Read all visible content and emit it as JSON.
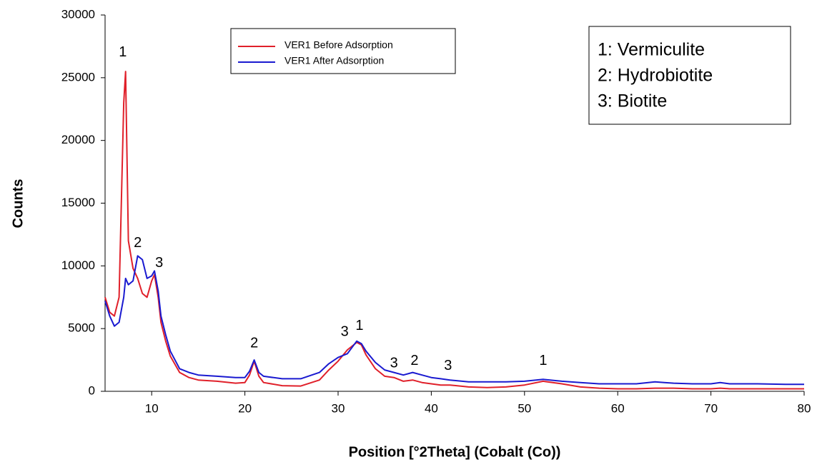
{
  "chart_data": {
    "type": "line",
    "x_label": "Position [°2Theta] (Cobalt (Co))",
    "y_label": "Counts",
    "x": [
      5,
      5.5,
      6,
      6.5,
      7,
      7.2,
      7.5,
      8,
      8.5,
      9,
      9.5,
      10,
      10.3,
      10.7,
      11,
      11.5,
      12,
      13,
      14,
      15,
      17,
      19,
      20,
      20.5,
      21,
      21.5,
      22,
      24,
      26,
      28,
      29,
      30,
      31,
      32,
      32.5,
      33,
      34,
      35,
      36,
      37,
      38,
      39,
      40,
      41,
      42,
      44,
      46,
      48,
      50,
      52,
      54,
      56,
      58,
      60,
      62,
      64,
      65,
      66,
      68,
      70,
      71,
      72,
      75,
      78,
      80
    ],
    "series": [
      {
        "name": "VER1 Before Adsorption",
        "color": "#e0202a",
        "values": [
          7500,
          6300,
          6000,
          7500,
          23000,
          25500,
          12000,
          9800,
          9000,
          7800,
          7500,
          8800,
          9300,
          7500,
          5500,
          4000,
          2800,
          1500,
          1100,
          900,
          800,
          650,
          700,
          1300,
          2400,
          1200,
          700,
          450,
          420,
          900,
          1700,
          2400,
          3300,
          3900,
          3700,
          2900,
          1800,
          1200,
          1100,
          800,
          900,
          700,
          600,
          500,
          500,
          350,
          300,
          350,
          500,
          800,
          600,
          350,
          250,
          200,
          200,
          250,
          250,
          250,
          200,
          200,
          250,
          200,
          200,
          200,
          200
        ]
      },
      {
        "name": "VER1 After Adsorption",
        "color": "#1a1ad0",
        "values": [
          7200,
          6000,
          5200,
          5500,
          7500,
          9000,
          8500,
          8800,
          10800,
          10500,
          9000,
          9200,
          9600,
          8000,
          6000,
          4500,
          3200,
          1800,
          1500,
          1300,
          1200,
          1100,
          1100,
          1600,
          2500,
          1500,
          1200,
          1000,
          1000,
          1500,
          2200,
          2700,
          3000,
          4000,
          3800,
          3200,
          2300,
          1700,
          1500,
          1300,
          1500,
          1300,
          1100,
          1000,
          900,
          750,
          750,
          750,
          800,
          950,
          800,
          700,
          600,
          600,
          600,
          750,
          700,
          650,
          600,
          600,
          700,
          600,
          600,
          550,
          550
        ]
      }
    ],
    "xlim": [
      5,
      80
    ],
    "xticks": [
      10,
      20,
      30,
      40,
      50,
      60,
      70,
      80
    ],
    "ylim": [
      0,
      30000
    ],
    "yticks": [
      0,
      5000,
      10000,
      15000,
      20000,
      25000,
      30000
    ],
    "annotations": [
      {
        "text": "1",
        "x": 6.9,
        "y": 27000
      },
      {
        "text": "2",
        "x": 8.5,
        "y": 11800
      },
      {
        "text": "3",
        "x": 10.8,
        "y": 10200
      },
      {
        "text": "2",
        "x": 21,
        "y": 3800
      },
      {
        "text": "3",
        "x": 30.7,
        "y": 4700
      },
      {
        "text": "1",
        "x": 32.3,
        "y": 5200
      },
      {
        "text": "3",
        "x": 36,
        "y": 2200
      },
      {
        "text": "2",
        "x": 38.2,
        "y": 2400
      },
      {
        "text": "3",
        "x": 41.8,
        "y": 2000
      },
      {
        "text": "1",
        "x": 52,
        "y": 2400
      }
    ],
    "note_lines": [
      "1: Vermiculite",
      "2: Hydrobiotite",
      "3: Biotite"
    ]
  }
}
